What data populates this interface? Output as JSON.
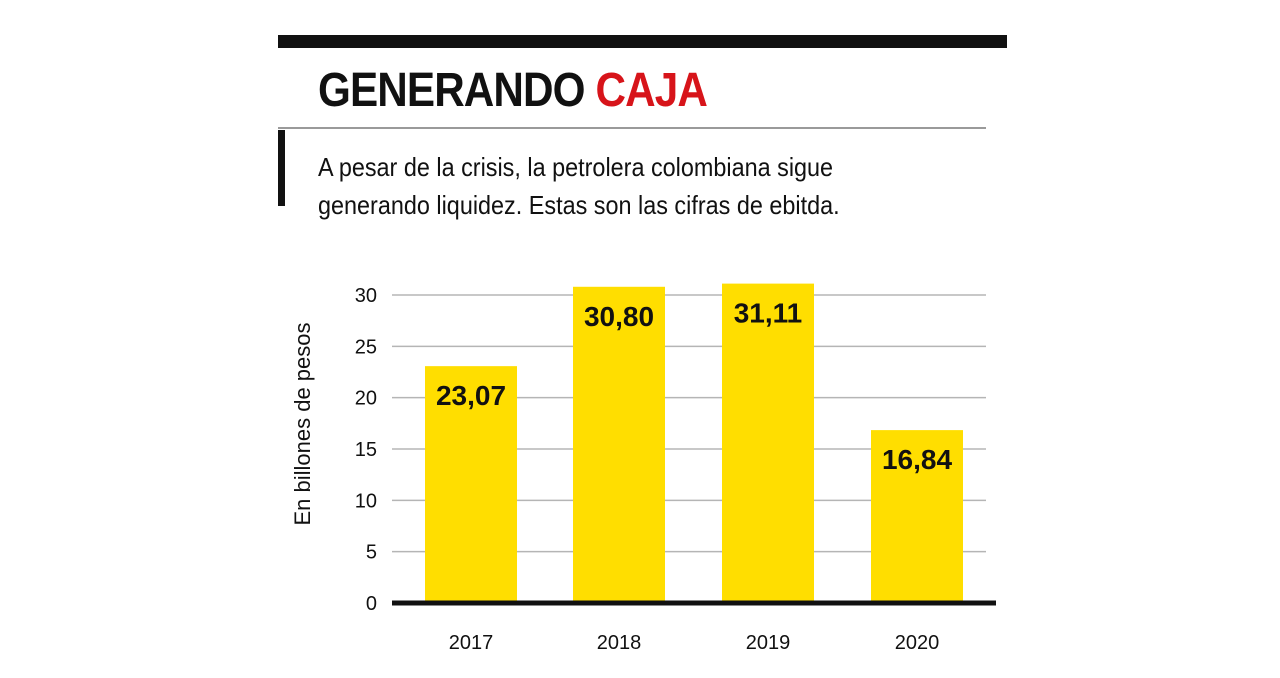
{
  "header": {
    "title_main": "GENERANDO",
    "title_accent": "CAJA",
    "subtitle_line1": "A pesar de la crisis, la petrolera colombiana sigue",
    "subtitle_line2": "generando liquidez. Estas son las cifras de ebitda."
  },
  "colors": {
    "bar": "#ffde00",
    "accent": "#d7141a",
    "gridline": "#b5b5b5",
    "axis": "#111111"
  },
  "chart_data": {
    "type": "bar",
    "categories": [
      "2017",
      "2018",
      "2019",
      "2020"
    ],
    "values": [
      23.07,
      30.8,
      31.11,
      16.84
    ],
    "value_labels": [
      "23,07",
      "30,80",
      "31,11",
      "16,84"
    ],
    "ylabel": "En billones de pesos",
    "xlabel": "",
    "ylim": [
      0,
      30
    ],
    "yticks": [
      0,
      5,
      10,
      15,
      20,
      25,
      30
    ],
    "grid": true
  }
}
